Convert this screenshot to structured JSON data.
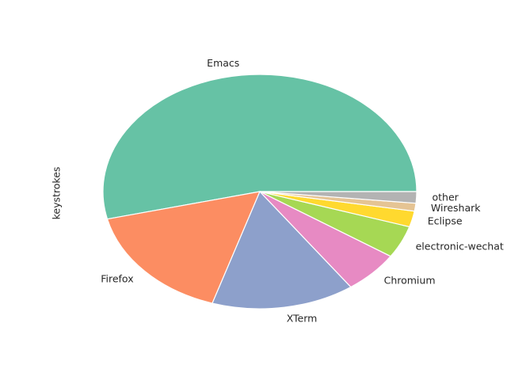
{
  "chart_data": {
    "type": "pie",
    "ylabel": "keystrokes",
    "categories": [
      "Emacs",
      "Firefox",
      "XTerm",
      "Chromium",
      "electronic-wechat",
      "Eclipse",
      "Wireshark",
      "other"
    ],
    "values": [
      54.3,
      16.5,
      14.9,
      5.9,
      4.5,
      2.2,
      1.1,
      1.6
    ],
    "colors": [
      "#66c2a5",
      "#fc8d62",
      "#8da0cb",
      "#e78ac3",
      "#a6d854",
      "#ffd92f",
      "#e5c494",
      "#b3b3b3"
    ],
    "start_angle_deg": 0,
    "direction": "counterclockwise",
    "legend": "none"
  }
}
